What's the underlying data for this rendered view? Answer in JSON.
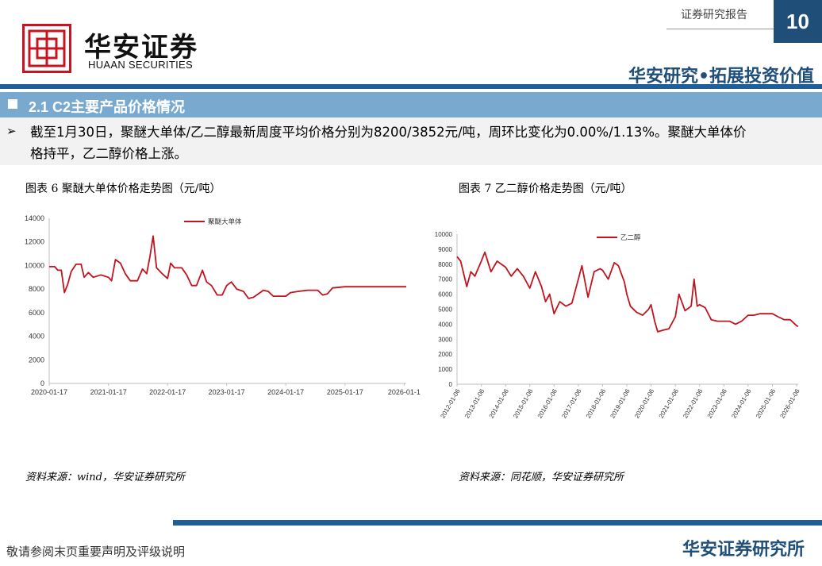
{
  "header": {
    "logo_cn": "华安证券",
    "logo_en": "HUAAN SECURITIES",
    "report_label": "证券研究报告",
    "page_number": "10",
    "slogan": "华安研究•拓展投资价值",
    "brand_color": "#1f4e79",
    "logo_color": "#c8141e"
  },
  "section": {
    "title": "2.1 C2主要产品价格情况",
    "summary_line1": "截至1月30日，聚醚大单体/乙二醇最新周度平均价格分别为8200/3852元/吨，周环比变化为0.00%/1.13%。聚醚大单体价",
    "summary_line2": "格持平，乙二醇价格上涨。"
  },
  "figures": [
    {
      "caption": "图表 6 聚醚大单体价格走势图（元/吨）",
      "source": "资料来源：wind，华安证券研究所"
    },
    {
      "caption": "图表 7 乙二醇价格走势图（元/吨）",
      "source": "资料来源：同花顺，华安证券研究所"
    }
  ],
  "footer": {
    "disclaimer": "敬请参阅末页重要声明及评级说明",
    "brand": "华安证券研究所"
  },
  "chart_data": [
    {
      "type": "line",
      "legend_position": "top-right",
      "ylim": [
        0,
        14000
      ],
      "yticks": [
        "0",
        "2000",
        "4000",
        "6000",
        "8000",
        "10000",
        "12000",
        "14000"
      ],
      "xticks": [
        "2020-01-17",
        "2021-01-17",
        "2022-01-17",
        "2023-01-17",
        "2024-01-17",
        "2025-01-17",
        "2026-01-1"
      ],
      "color": "#c0141e",
      "series": [
        {
          "name": "聚醚大单体",
          "points": [
            [
              "2020-01-17",
              9900
            ],
            [
              "2020-02-20",
              9900
            ],
            [
              "2020-03-10",
              9600
            ],
            [
              "2020-04-01",
              9600
            ],
            [
              "2020-04-20",
              7700
            ],
            [
              "2020-05-10",
              8400
            ],
            [
              "2020-06-01",
              9500
            ],
            [
              "2020-07-01",
              10100
            ],
            [
              "2020-08-01",
              10100
            ],
            [
              "2020-08-20",
              9000
            ],
            [
              "2020-09-15",
              9400
            ],
            [
              "2020-10-15",
              9000
            ],
            [
              "2020-12-01",
              9200
            ],
            [
              "2021-01-17",
              9000
            ],
            [
              "2021-02-05",
              8700
            ],
            [
              "2021-03-01",
              10500
            ],
            [
              "2021-04-01",
              10200
            ],
            [
              "2021-05-01",
              9300
            ],
            [
              "2021-06-01",
              8700
            ],
            [
              "2021-07-15",
              8700
            ],
            [
              "2021-08-15",
              9700
            ],
            [
              "2021-09-10",
              9300
            ],
            [
              "2021-10-01",
              10800
            ],
            [
              "2021-10-20",
              12500
            ],
            [
              "2021-11-10",
              9800
            ],
            [
              "2021-12-15",
              9300
            ],
            [
              "2022-01-17",
              8900
            ],
            [
              "2022-02-05",
              10200
            ],
            [
              "2022-03-01",
              9800
            ],
            [
              "2022-04-15",
              9800
            ],
            [
              "2022-05-15",
              9200
            ],
            [
              "2022-06-15",
              8300
            ],
            [
              "2022-07-15",
              8300
            ],
            [
              "2022-08-20",
              9600
            ],
            [
              "2022-09-15",
              8600
            ],
            [
              "2022-10-15",
              8300
            ],
            [
              "2022-11-20",
              7500
            ],
            [
              "2022-12-20",
              7500
            ],
            [
              "2023-01-17",
              8300
            ],
            [
              "2023-02-15",
              8600
            ],
            [
              "2023-03-20",
              8000
            ],
            [
              "2023-05-01",
              7800
            ],
            [
              "2023-06-01",
              7200
            ],
            [
              "2023-07-01",
              7300
            ],
            [
              "2023-08-01",
              7600
            ],
            [
              "2023-09-01",
              7900
            ],
            [
              "2023-10-01",
              7800
            ],
            [
              "2023-11-01",
              7400
            ],
            [
              "2024-01-17",
              7400
            ],
            [
              "2024-02-15",
              7700
            ],
            [
              "2024-04-01",
              7800
            ],
            [
              "2024-06-01",
              7900
            ],
            [
              "2024-08-01",
              7900
            ],
            [
              "2024-09-01",
              7500
            ],
            [
              "2024-10-01",
              7600
            ],
            [
              "2024-11-01",
              8100
            ],
            [
              "2025-01-17",
              8200
            ],
            [
              "2025-07-01",
              8200
            ],
            [
              "2026-01-30",
              8200
            ]
          ]
        }
      ]
    },
    {
      "type": "line",
      "legend_position": "top-right",
      "ylim": [
        0,
        10000
      ],
      "yticks": [
        "0",
        "1000",
        "2000",
        "3000",
        "4000",
        "5000",
        "6000",
        "7000",
        "8000",
        "9000",
        "10000"
      ],
      "xticks": [
        "2012-01-06",
        "2013-01-06",
        "2014-01-06",
        "2015-01-06",
        "2016-01-06",
        "2017-01-06",
        "2018-01-06",
        "2019-01-06",
        "2020-01-06",
        "2021-01-06",
        "2022-01-06",
        "2023-01-06",
        "2024-01-06",
        "2025-01-06",
        "2026-01-06"
      ],
      "color": "#c0141e",
      "series": [
        {
          "name": "乙二醇",
          "points": [
            [
              "2012-01-06",
              8500
            ],
            [
              "2012-03-01",
              8200
            ],
            [
              "2012-06-01",
              6500
            ],
            [
              "2012-08-01",
              7500
            ],
            [
              "2012-10-01",
              7200
            ],
            [
              "2013-01-06",
              8200
            ],
            [
              "2013-03-01",
              8800
            ],
            [
              "2013-06-01",
              7500
            ],
            [
              "2013-09-01",
              8200
            ],
            [
              "2014-01-06",
              7800
            ],
            [
              "2014-04-01",
              7200
            ],
            [
              "2014-07-01",
              7700
            ],
            [
              "2014-10-01",
              7200
            ],
            [
              "2015-01-06",
              6400
            ],
            [
              "2015-04-01",
              7500
            ],
            [
              "2015-07-01",
              6500
            ],
            [
              "2015-09-01",
              5500
            ],
            [
              "2015-11-01",
              6000
            ],
            [
              "2016-01-06",
              4700
            ],
            [
              "2016-04-01",
              5500
            ],
            [
              "2016-07-01",
              5200
            ],
            [
              "2016-10-01",
              5400
            ],
            [
              "2017-01-06",
              7000
            ],
            [
              "2017-03-01",
              7900
            ],
            [
              "2017-06-01",
              5800
            ],
            [
              "2017-09-01",
              7500
            ],
            [
              "2017-12-01",
              7700
            ],
            [
              "2018-01-06",
              7600
            ],
            [
              "2018-04-01",
              7000
            ],
            [
              "2018-07-01",
              8100
            ],
            [
              "2018-09-01",
              7900
            ],
            [
              "2018-12-01",
              6800
            ],
            [
              "2019-01-06",
              6000
            ],
            [
              "2019-03-01",
              5200
            ],
            [
              "2019-06-01",
              4800
            ],
            [
              "2019-09-01",
              4600
            ],
            [
              "2019-12-01",
              5000
            ],
            [
              "2020-01-06",
              5300
            ],
            [
              "2020-03-01",
              4200
            ],
            [
              "2020-04-15",
              3500
            ],
            [
              "2020-07-01",
              3600
            ],
            [
              "2020-10-01",
              3700
            ],
            [
              "2021-01-06",
              4500
            ],
            [
              "2021-03-01",
              6000
            ],
            [
              "2021-06-01",
              4900
            ],
            [
              "2021-09-01",
              5200
            ],
            [
              "2021-10-15",
              7000
            ],
            [
              "2021-12-01",
              5200
            ],
            [
              "2022-01-06",
              5300
            ],
            [
              "2022-04-01",
              5100
            ],
            [
              "2022-07-01",
              4300
            ],
            [
              "2022-10-01",
              4200
            ],
            [
              "2023-01-06",
              4200
            ],
            [
              "2023-04-01",
              4200
            ],
            [
              "2023-07-01",
              4000
            ],
            [
              "2023-10-01",
              4200
            ],
            [
              "2024-01-06",
              4600
            ],
            [
              "2024-04-01",
              4600
            ],
            [
              "2024-07-01",
              4700
            ],
            [
              "2024-10-01",
              4700
            ],
            [
              "2025-01-06",
              4700
            ],
            [
              "2025-04-01",
              4500
            ],
            [
              "2025-07-01",
              4300
            ],
            [
              "2025-10-01",
              4300
            ],
            [
              "2026-01-06",
              3900
            ],
            [
              "2026-01-30",
              3852
            ]
          ]
        }
      ]
    }
  ]
}
